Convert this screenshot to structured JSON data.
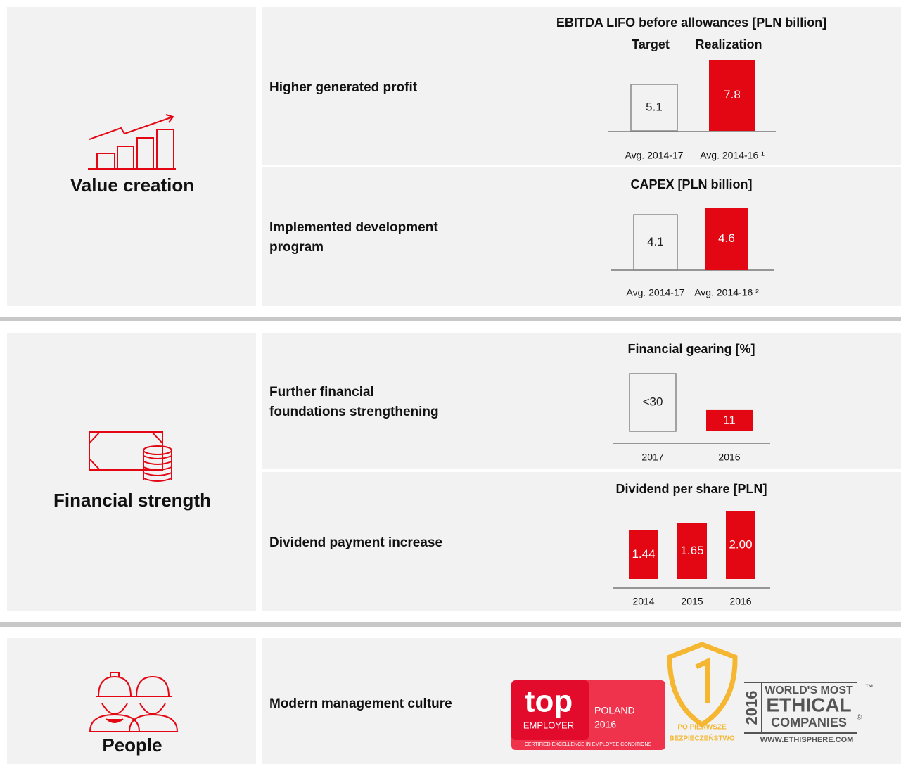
{
  "sections": [
    {
      "title": "Value creation",
      "rows": [
        {
          "label": [
            "Higher generated profit"
          ],
          "chart": {
            "type": "bar",
            "title": "EBITDA LIFO before allowances  [PLN billion]",
            "column_headers": [
              "Target",
              "Realization"
            ],
            "categories": [
              "Avg. 2014-17",
              "Avg. 2014-16 ¹"
            ],
            "values": [
              5.1,
              7.8
            ],
            "colors": [
              "none",
              "#e30613"
            ]
          }
        },
        {
          "label": [
            "Implemented development",
            "program"
          ],
          "chart": {
            "type": "bar",
            "title": "CAPEX [PLN billion]",
            "categories": [
              "Avg. 2014-17",
              "Avg. 2014-16 ²"
            ],
            "values": [
              4.1,
              4.6
            ],
            "colors": [
              "none",
              "#e30613"
            ]
          }
        }
      ]
    },
    {
      "title": "Financial strength",
      "rows": [
        {
          "label": [
            "Further financial",
            "foundations strengthening"
          ],
          "chart": {
            "type": "bar",
            "title": "Financial gearing [%]",
            "categories": [
              "2017",
              "2016"
            ],
            "values": [
              30,
              11
            ],
            "value_labels": [
              "<30",
              "11"
            ],
            "colors": [
              "none",
              "#e30613"
            ]
          }
        },
        {
          "label": [
            "Dividend payment increase"
          ],
          "chart": {
            "type": "bar",
            "title": "Dividend per share [PLN]",
            "categories": [
              "2014",
              "2015",
              "2016"
            ],
            "values": [
              1.44,
              1.65,
              2
            ],
            "value_labels": [
              "1.44",
              "1.65",
              "2.00"
            ],
            "colors": [
              "#e30613",
              "#e30613",
              "#e30613"
            ]
          }
        }
      ]
    },
    {
      "title": "People",
      "rows": [
        {
          "label": [
            "Modern management culture"
          ],
          "logos": {
            "top_employer": [
              "top",
              "EMPLOYER",
              "POLAND",
              "2016",
              "CERTIFIED EXCELLENCE IN EMPLOYEE CONDITIONS"
            ],
            "safety": [
              "PO PIERWSZE",
              "BEZPIECZEŃSTWO"
            ],
            "ethisphere": [
              "2016",
              "WORLD'S MOST",
              "ETHICAL",
              "COMPANIES",
              "WWW.ETHISPHERE.COM",
              "™",
              "®"
            ]
          }
        }
      ]
    }
  ]
}
